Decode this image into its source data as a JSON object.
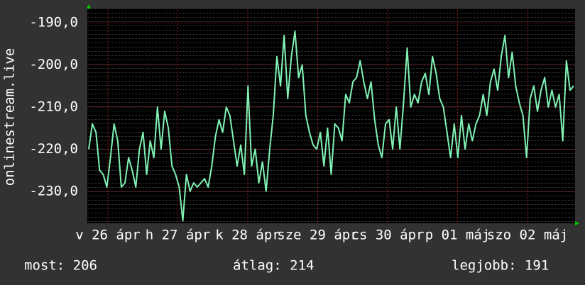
{
  "chart_data": {
    "type": "line",
    "y_label": "onlinestream.live",
    "x_tick_labels": [
      "v 26 ápr",
      "h 27 ápr",
      "k 28 ápr",
      "sze 29 ápr",
      "cs 30 ápr",
      "p 01 máj",
      "szo 02 máj"
    ],
    "ylim": [
      -237.6,
      -186.6
    ],
    "yticks": [
      {
        "value": -190,
        "label": "-190,0"
      },
      {
        "value": -200,
        "label": "-200,0"
      },
      {
        "value": -210,
        "label": "-210,0"
      },
      {
        "value": -220,
        "label": "-220,0"
      },
      {
        "value": -230,
        "label": "-230,0"
      }
    ],
    "grid": true,
    "color": "#80f2b4",
    "values": [
      -220,
      -214,
      -216,
      -225,
      -226,
      -229,
      -222,
      -214,
      -218,
      -229,
      -228,
      -222,
      -225,
      -229,
      -220,
      -216,
      -226,
      -218,
      -222,
      -210,
      -220,
      -211,
      -215,
      -224,
      -226,
      -229,
      -237,
      -226,
      -230,
      -228,
      -229,
      -228,
      -227,
      -229,
      -224,
      -217,
      -213,
      -216,
      -210,
      -212,
      -218,
      -224,
      -219,
      -226,
      -205,
      -224,
      -220,
      -228,
      -223,
      -230,
      -220,
      -212,
      -198,
      -205,
      -193,
      -208,
      -198,
      -192,
      -203,
      -200,
      -212,
      -216,
      -219,
      -220,
      -216,
      -224,
      -215,
      -226,
      -214,
      -215,
      -218,
      -207,
      -209,
      -204,
      -203,
      -199,
      -204,
      -208,
      -204,
      -213,
      -219,
      -222,
      -214,
      -213,
      -220,
      -210,
      -220,
      -209,
      -196,
      -210,
      -207,
      -209,
      -204,
      -202,
      -207,
      -198,
      -202,
      -208,
      -210,
      -216,
      -222,
      -214,
      -222,
      -212,
      -220,
      -214,
      -218,
      -214,
      -212,
      -207,
      -212,
      -204,
      -201,
      -206,
      -198,
      -193,
      -203,
      -197,
      -205,
      -209,
      -212,
      -222,
      -208,
      -205,
      -211,
      -206,
      -203,
      -210,
      -206,
      -210,
      -207,
      -218,
      -199,
      -206,
      -205
    ],
    "stats": [
      "most: 206",
      "átlag: 214",
      "legjobb: 191"
    ]
  }
}
